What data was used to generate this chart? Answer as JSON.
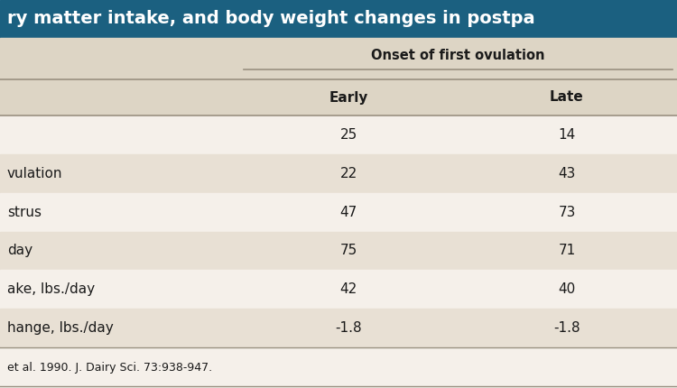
{
  "title": "ry matter intake, and body weight changes in postpa",
  "title_bg": "#1b6080",
  "title_color": "#ffffff",
  "header_group": "Onset of first ovulation",
  "col_headers": [
    "Early",
    "Late"
  ],
  "row_labels": [
    "",
    "vulation",
    "strus",
    "day",
    "ake, lbs./day",
    "hange, lbs./day"
  ],
  "data": [
    [
      "25",
      "14"
    ],
    [
      "22",
      "43"
    ],
    [
      "47",
      "73"
    ],
    [
      "75",
      "71"
    ],
    [
      "42",
      "40"
    ],
    [
      "-1.8",
      "-1.8"
    ]
  ],
  "footnote": "et al. 1990. J. Dairy Sci. 73:938-947.",
  "bg_light": "#f5f0ea",
  "bg_dark": "#e8e0d4",
  "header_bg": "#ddd5c5",
  "text_color": "#1a1a1a",
  "line_color": "#999080",
  "title_fontsize": 14,
  "header_fontsize": 10.5,
  "col_header_fontsize": 11,
  "data_fontsize": 11,
  "footnote_fontsize": 9
}
